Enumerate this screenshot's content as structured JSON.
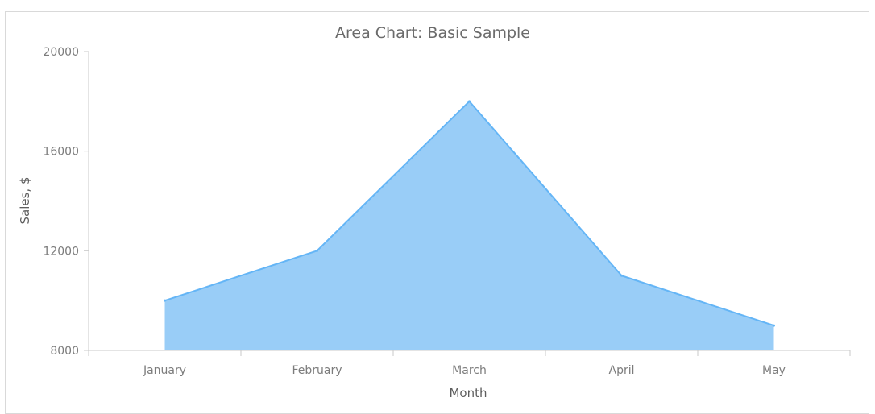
{
  "chart_data": {
    "type": "area",
    "title": "Area Chart: Basic Sample",
    "xlabel": "Month",
    "ylabel": "Sales, $",
    "categories": [
      "January",
      "February",
      "March",
      "April",
      "May"
    ],
    "values": [
      10000,
      12000,
      18000,
      11000,
      9000
    ],
    "ylim": [
      8000,
      20000
    ],
    "yticks": [
      "8000",
      "12000",
      "16000",
      "20000"
    ],
    "grid": false,
    "legend": "none",
    "colors": {
      "fill": "#99cdf7",
      "stroke": "#64b5f6"
    }
  }
}
